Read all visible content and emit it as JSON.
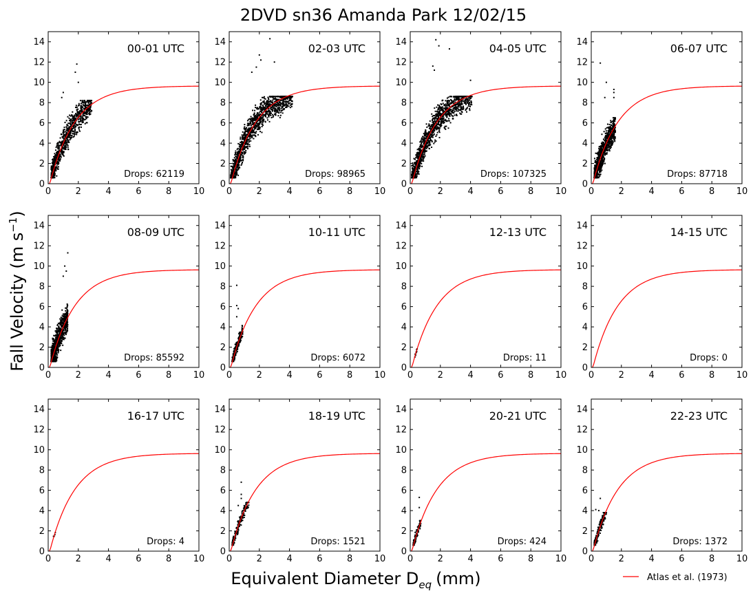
{
  "chart_data": {
    "type": "scatter",
    "title": "2DVD sn36 Amanda Park 12/02/15",
    "xlabel": "Equivalent Diameter D",
    "xlabel_sub": "eq",
    "xlabel_unit": "(mm)",
    "ylabel": "Fall Velocity (m s",
    "ylabel_sup": "−1",
    "ylabel_close": ")",
    "xlim": [
      0,
      10
    ],
    "ylim": [
      0,
      15
    ],
    "xticks": [
      0,
      2,
      4,
      6,
      8,
      10
    ],
    "yticks": [
      0,
      2,
      4,
      6,
      8,
      10,
      12,
      14
    ],
    "grid": false,
    "legend": {
      "position": "bottom-right",
      "label": "Atlas et al. (1973)"
    },
    "drops_label": "Drops:",
    "fit_curve": {
      "name": "Atlas et al. (1973)",
      "formula": "v = 9.65 - 10.3*exp(-0.6*D)",
      "color": "#ff0000"
    },
    "panels": [
      {
        "hour": "00-01 UTC",
        "drops": 62119,
        "series": [
          {
            "dmin": 0.2,
            "dmax": 2.9,
            "hw": 1.6,
            "n": 900,
            "vmax": 8.2,
            "outliers": [
              [
                1.9,
                11.8
              ],
              [
                1.8,
                11.0
              ],
              [
                1.0,
                9.0
              ],
              [
                0.9,
                8.5
              ],
              [
                2.0,
                10.0
              ]
            ]
          }
        ]
      },
      {
        "hour": "02-03 UTC",
        "drops": 98965,
        "series": [
          {
            "dmin": 0.1,
            "dmax": 4.2,
            "hw": 1.7,
            "n": 1300,
            "vmax": 8.6,
            "outliers": [
              [
                2.7,
                14.3
              ],
              [
                2.0,
                12.7
              ],
              [
                2.1,
                12.2
              ],
              [
                1.5,
                11.0
              ],
              [
                3.0,
                12.0
              ],
              [
                1.8,
                11.5
              ]
            ]
          }
        ]
      },
      {
        "hour": "04-05 UTC",
        "drops": 107325,
        "series": [
          {
            "dmin": 0.1,
            "dmax": 4.1,
            "hw": 1.7,
            "n": 1300,
            "vmax": 8.6,
            "outliers": [
              [
                1.7,
                14.2
              ],
              [
                1.9,
                13.6
              ],
              [
                2.6,
                13.3
              ],
              [
                1.6,
                11.2
              ],
              [
                1.5,
                11.6
              ],
              [
                4.0,
                10.2
              ]
            ]
          }
        ]
      },
      {
        "hour": "06-07 UTC",
        "drops": 87718,
        "series": [
          {
            "dmin": 0.2,
            "dmax": 1.6,
            "hw": 1.7,
            "n": 900,
            "vmax": 6.5,
            "outliers": [
              [
                0.6,
                11.9
              ],
              [
                1.5,
                9.3
              ],
              [
                1.5,
                9.0
              ],
              [
                0.9,
                8.5
              ],
              [
                1.0,
                10.0
              ],
              [
                1.5,
                8.5
              ]
            ]
          }
        ]
      },
      {
        "hour": "08-09 UTC",
        "drops": 85592,
        "series": [
          {
            "dmin": 0.2,
            "dmax": 1.3,
            "hw": 1.8,
            "n": 800,
            "vmax": 7.0,
            "outliers": [
              [
                1.3,
                11.3
              ],
              [
                1.1,
                10.0
              ],
              [
                1.2,
                9.5
              ],
              [
                1.0,
                9.0
              ]
            ]
          }
        ]
      },
      {
        "hour": "10-11 UTC",
        "drops": 6072,
        "series": [
          {
            "dmin": 0.2,
            "dmax": 0.9,
            "hw": 0.7,
            "n": 250,
            "vmax": 4.5,
            "outliers": [
              [
                0.5,
                8.1
              ],
              [
                0.5,
                6.1
              ],
              [
                0.6,
                5.8
              ],
              [
                0.5,
                5.0
              ]
            ]
          }
        ]
      },
      {
        "hour": "12-13 UTC",
        "drops": 11,
        "series": [
          {
            "dmin": 0.3,
            "dmax": 0.5,
            "hw": 0.2,
            "n": 11,
            "vmax": 2.5,
            "outliers": []
          }
        ]
      },
      {
        "hour": "14-15 UTC",
        "drops": 0,
        "series": []
      },
      {
        "hour": "16-17 UTC",
        "drops": 4,
        "series": [
          {
            "dmin": 0.3,
            "dmax": 0.5,
            "hw": 0.2,
            "n": 4,
            "vmax": 2.0,
            "outliers": []
          }
        ]
      },
      {
        "hour": "18-19 UTC",
        "drops": 1521,
        "series": [
          {
            "dmin": 0.2,
            "dmax": 1.3,
            "hw": 0.7,
            "n": 200,
            "vmax": 4.8,
            "outliers": [
              [
                0.8,
                6.8
              ],
              [
                0.8,
                5.6
              ],
              [
                0.8,
                5.2
              ],
              [
                0.6,
                4.5
              ]
            ]
          }
        ]
      },
      {
        "hour": "20-21 UTC",
        "drops": 424,
        "series": [
          {
            "dmin": 0.2,
            "dmax": 0.7,
            "hw": 0.6,
            "n": 120,
            "vmax": 3.0,
            "outliers": [
              [
                0.6,
                5.3
              ],
              [
                0.6,
                4.3
              ]
            ]
          }
        ]
      },
      {
        "hour": "22-23 UTC",
        "drops": 1372,
        "series": [
          {
            "dmin": 0.2,
            "dmax": 1.0,
            "hw": 0.7,
            "n": 200,
            "vmax": 3.8,
            "outliers": [
              [
                0.6,
                5.2
              ],
              [
                0.3,
                4.1
              ],
              [
                0.5,
                4.0
              ]
            ]
          }
        ]
      }
    ]
  }
}
